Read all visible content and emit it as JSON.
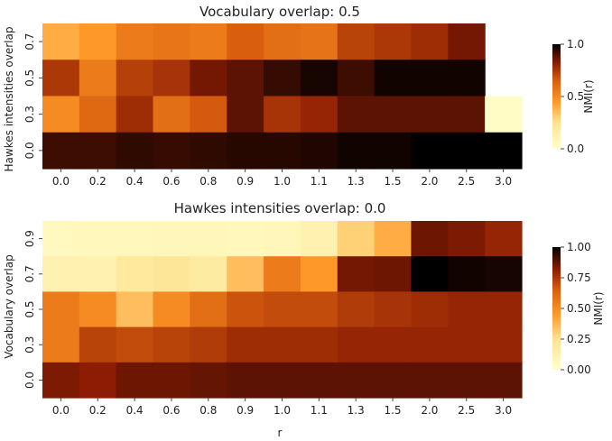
{
  "chart_data": [
    {
      "type": "heatmap",
      "title": "Vocabulary overlap: 0.5",
      "xlabel": "",
      "ylabel": "Hawkes intensities overlap",
      "x_categories": [
        "0.0",
        "0.2",
        "0.4",
        "0.6",
        "0.8",
        "0.9",
        "1.0",
        "1.1",
        "1.3",
        "1.5",
        "2.0",
        "2.5",
        "3.0"
      ],
      "y_categories": [
        "0.7",
        "0.5",
        "0.3",
        "0.0"
      ],
      "values": [
        [
          0.4,
          0.45,
          0.55,
          0.57,
          0.55,
          0.65,
          0.6,
          0.58,
          0.72,
          0.75,
          0.78,
          0.85,
          null
        ],
        [
          0.75,
          0.55,
          0.73,
          0.76,
          0.85,
          0.88,
          0.93,
          0.97,
          0.92,
          0.98,
          0.98,
          0.98,
          null
        ],
        [
          0.5,
          0.62,
          0.78,
          0.6,
          0.66,
          0.88,
          0.76,
          0.8,
          0.88,
          0.88,
          0.88,
          0.88,
          0.03
        ],
        [
          0.92,
          0.92,
          0.94,
          0.93,
          0.94,
          0.95,
          0.95,
          0.96,
          0.98,
          0.98,
          1.0,
          1.0,
          1.0
        ]
      ],
      "colorbar": {
        "label": "NMI(r)",
        "ticks": [
          "0.0",
          "0.5",
          "1.0"
        ],
        "range": [
          0.0,
          1.0
        ]
      }
    },
    {
      "type": "heatmap",
      "title": "Hawkes intensities overlap: 0.0",
      "xlabel": "r",
      "ylabel": "Vocabulary overlap",
      "x_categories": [
        "0.0",
        "0.2",
        "0.4",
        "0.6",
        "0.8",
        "0.9",
        "1.0",
        "1.1",
        "1.3",
        "1.5",
        "2.0",
        "2.5",
        "3.0"
      ],
      "y_categories": [
        "0.9",
        "0.7",
        "0.5",
        "0.3",
        "0.0"
      ],
      "values": [
        [
          0.05,
          0.07,
          0.07,
          0.08,
          0.08,
          0.07,
          0.08,
          0.12,
          0.3,
          0.4,
          0.86,
          0.84,
          0.8
        ],
        [
          0.12,
          0.12,
          0.2,
          0.22,
          0.18,
          0.35,
          0.55,
          0.45,
          0.85,
          0.86,
          1.0,
          0.98,
          0.97
        ],
        [
          0.55,
          0.5,
          0.35,
          0.5,
          0.6,
          0.68,
          0.7,
          0.7,
          0.74,
          0.76,
          0.78,
          0.8,
          0.8
        ],
        [
          0.55,
          0.72,
          0.7,
          0.72,
          0.74,
          0.78,
          0.78,
          0.78,
          0.8,
          0.8,
          0.8,
          0.8,
          0.8
        ],
        [
          0.84,
          0.82,
          0.86,
          0.86,
          0.87,
          0.88,
          0.88,
          0.88,
          0.88,
          0.88,
          0.88,
          0.88,
          0.88
        ]
      ],
      "colorbar": {
        "label": "NMI(r)",
        "ticks": [
          "0.00",
          "0.25",
          "0.50",
          "0.75",
          "1.00"
        ],
        "range": [
          0.0,
          1.0
        ]
      }
    }
  ]
}
